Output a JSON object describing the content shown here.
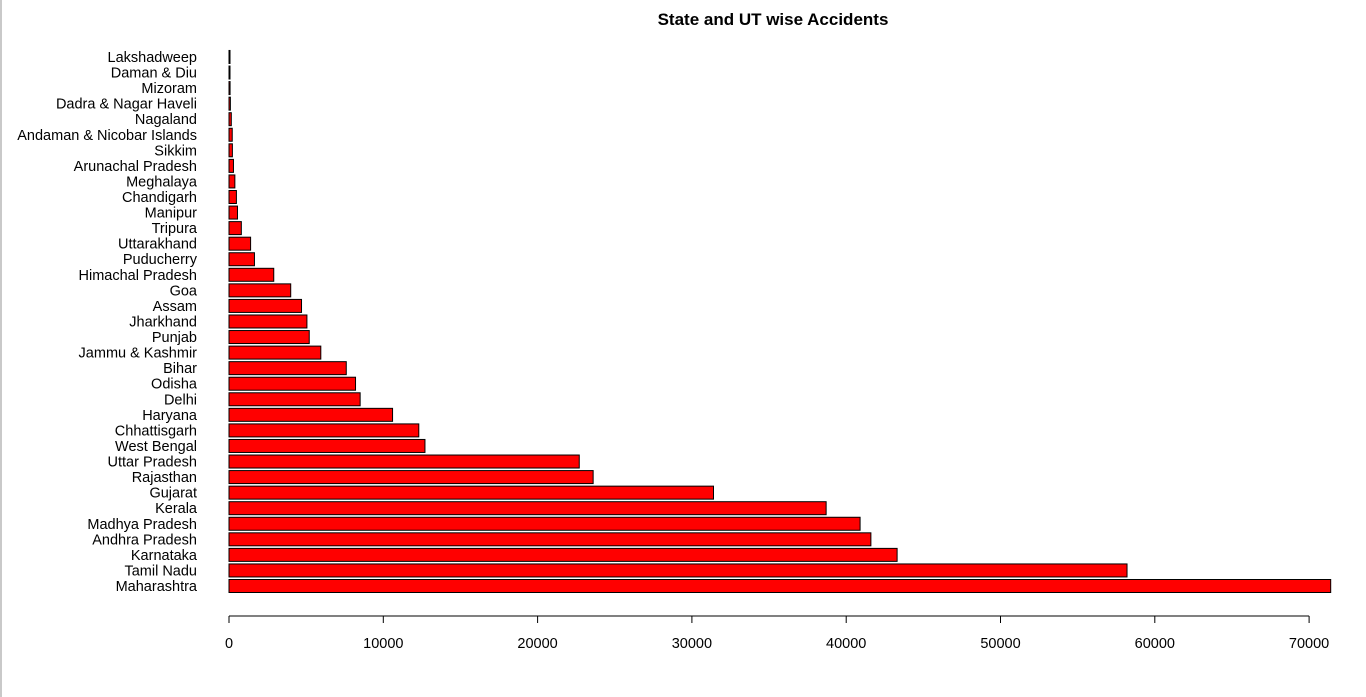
{
  "chart_data": {
    "type": "bar",
    "orientation": "horizontal",
    "title": "State and UT wise Accidents",
    "xlabel": "",
    "ylabel": "",
    "categories": [
      "Maharashtra",
      "Tamil Nadu",
      "Karnataka",
      "Andhra Pradesh",
      "Madhya Pradesh",
      "Kerala",
      "Gujarat",
      "Rajasthan",
      "Uttar Pradesh",
      "West Bengal",
      "Chhattisgarh",
      "Haryana",
      "Delhi",
      "Odisha",
      "Bihar",
      "Jammu & Kashmir",
      "Punjab",
      "Jharkhand",
      "Assam",
      "Goa",
      "Himachal Pradesh",
      "Puducherry",
      "Uttarakhand",
      "Tripura",
      "Manipur",
      "Chandigarh",
      "Meghalaya",
      "Arunachal Pradesh",
      "Sikkim",
      "Andaman & Nicobar Islands",
      "Nagaland",
      "Dadra & Nagar Haveli",
      "Mizoram",
      "Daman & Diu",
      "Lakshadweep"
    ],
    "values": [
      71400,
      58200,
      43300,
      41600,
      40900,
      38700,
      31400,
      23600,
      22700,
      12700,
      12300,
      10600,
      8500,
      8200,
      7600,
      5950,
      5200,
      5050,
      4700,
      4000,
      2900,
      1650,
      1400,
      800,
      550,
      480,
      380,
      290,
      220,
      210,
      150,
      90,
      70,
      60,
      10
    ],
    "xlim": [
      0,
      71400
    ],
    "xticks": [
      0,
      10000,
      20000,
      30000,
      40000,
      50000,
      60000,
      70000
    ],
    "xtick_labels": [
      "0",
      "10000",
      "20000",
      "30000",
      "40000",
      "50000",
      "60000",
      "70000"
    ],
    "bar_color": "#ff0000",
    "bar_border_color": "#000000",
    "grid": false,
    "legend": "none"
  }
}
